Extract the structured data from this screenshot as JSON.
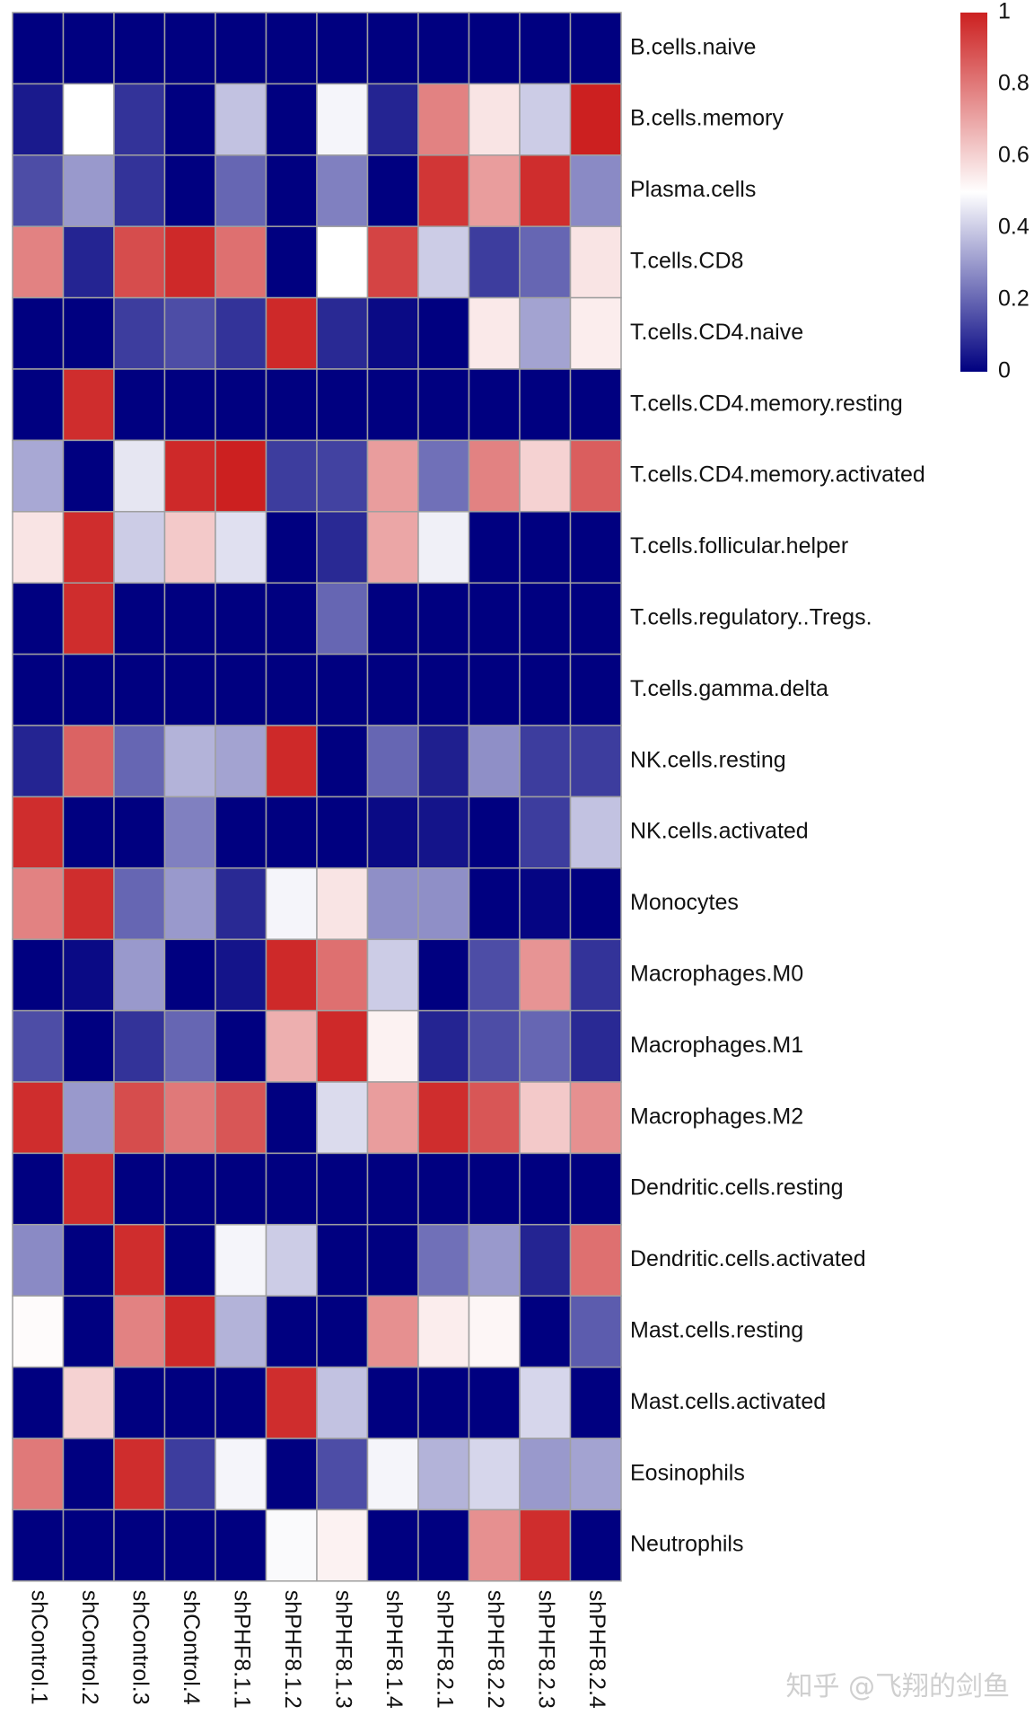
{
  "chart_data": {
    "type": "heatmap",
    "title": "",
    "xlabel": "",
    "ylabel": "",
    "columns": [
      "shControl.1",
      "shControl.2",
      "shControl.3",
      "shControl.4",
      "shPHF8.1.1",
      "shPHF8.1.2",
      "shPHF8.1.3",
      "shPHF8.1.4",
      "shPHF8.2.1",
      "shPHF8.2.2",
      "shPHF8.2.3",
      "shPHF8.2.4"
    ],
    "rows": [
      "B.cells.naive",
      "B.cells.memory",
      "Plasma.cells",
      "T.cells.CD8",
      "T.cells.CD4.naive",
      "T.cells.CD4.memory.resting",
      "T.cells.CD4.memory.activated",
      "T.cells.follicular.helper",
      "T.cells.regulatory..Tregs.",
      "T.cells.gamma.delta",
      "NK.cells.resting",
      "NK.cells.activated",
      "Monocytes",
      "Macrophages.M0",
      "Macrophages.M1",
      "Macrophages.M2",
      "Dendritic.cells.resting",
      "Dendritic.cells.activated",
      "Mast.cells.resting",
      "Mast.cells.activated",
      "Eosinophils",
      "Neutrophils"
    ],
    "values": [
      [
        0,
        0,
        0,
        0,
        0,
        0,
        0,
        0,
        0,
        0,
        0,
        0
      ],
      [
        0.05,
        0.5,
        0.1,
        0,
        0.38,
        0,
        0.48,
        0.07,
        0.78,
        0.56,
        0.4,
        1
      ],
      [
        0.15,
        0.3,
        0.1,
        0,
        0.2,
        0,
        0.25,
        0,
        0.95,
        0.72,
        0.97,
        0.27
      ],
      [
        0.78,
        0.07,
        0.9,
        0.98,
        0.82,
        0,
        0.5,
        0.92,
        0.4,
        0.12,
        0.2,
        0.56
      ],
      [
        0,
        0,
        0.12,
        0.15,
        0.1,
        0.98,
        0.08,
        0.02,
        0,
        0.55,
        0.32,
        0.54
      ],
      [
        0,
        0.97,
        0,
        0,
        0,
        0,
        0,
        0,
        0,
        0,
        0,
        0
      ],
      [
        0.33,
        0,
        0.45,
        0.98,
        1,
        0.12,
        0.13,
        0.72,
        0.22,
        0.78,
        0.6,
        0.86
      ],
      [
        0.56,
        0.97,
        0.4,
        0.62,
        0.44,
        0,
        0.08,
        0.7,
        0.47,
        0,
        0,
        0
      ],
      [
        0,
        0.97,
        0,
        0,
        0,
        0,
        0.2,
        0,
        0,
        0,
        0,
        0
      ],
      [
        0,
        0,
        0,
        0,
        0,
        0,
        0,
        0,
        0,
        0,
        0,
        0
      ],
      [
        0.07,
        0.85,
        0.2,
        0.35,
        0.32,
        0.98,
        0,
        0.2,
        0.06,
        0.28,
        0.12,
        0.12
      ],
      [
        0.97,
        0,
        0,
        0.25,
        0,
        0,
        0,
        0.02,
        0.04,
        0,
        0.12,
        0.38
      ],
      [
        0.78,
        0.97,
        0.2,
        0.3,
        0.08,
        0.48,
        0.56,
        0.28,
        0.28,
        0,
        0.01,
        0
      ],
      [
        0,
        0.02,
        0.3,
        0,
        0.04,
        0.98,
        0.82,
        0.4,
        0,
        0.15,
        0.74,
        0.1
      ],
      [
        0.15,
        0,
        0.1,
        0.2,
        0,
        0.68,
        0.98,
        0.53,
        0.07,
        0.15,
        0.2,
        0.08
      ],
      [
        0.97,
        0.3,
        0.9,
        0.8,
        0.88,
        0,
        0.43,
        0.72,
        0.97,
        0.88,
        0.62,
        0.75
      ],
      [
        0,
        0.97,
        0,
        0,
        0,
        0,
        0,
        0,
        0,
        0,
        0,
        0
      ],
      [
        0.27,
        0,
        0.97,
        0,
        0.48,
        0.4,
        0,
        0,
        0.22,
        0.3,
        0.07,
        0.82
      ],
      [
        0.51,
        0,
        0.78,
        0.98,
        0.35,
        0,
        0,
        0.75,
        0.54,
        0.52,
        0,
        0.18
      ],
      [
        0,
        0.6,
        0,
        0,
        0,
        0.97,
        0.38,
        0,
        0,
        0,
        0.42,
        0
      ],
      [
        0.8,
        0,
        0.97,
        0.12,
        0.48,
        0,
        0.15,
        0.48,
        0.35,
        0.42,
        0.3,
        0.32
      ],
      [
        0,
        0,
        0,
        0,
        0,
        0.49,
        0.53,
        0,
        0,
        0.75,
        0.97,
        0
      ]
    ],
    "color_scale": {
      "min": 0,
      "max": 1,
      "low": "#000080",
      "mid": "#ffffff",
      "high": "#cc2020",
      "ticks": [
        "0",
        "0.2",
        "0.4",
        "0.6",
        "0.8",
        "1"
      ]
    },
    "grid": true,
    "legend_position": "top-right"
  },
  "watermark": {
    "text": "知乎 @飞翔的剑鱼"
  }
}
